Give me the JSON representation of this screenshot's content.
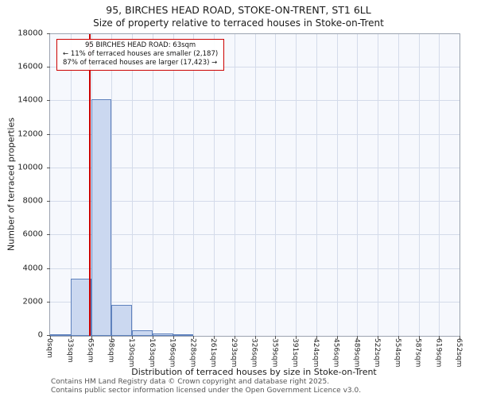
{
  "title": "95, BIRCHES HEAD ROAD, STOKE-ON-TRENT, ST1 6LL",
  "subtitle": "Size of property relative to terraced houses in Stoke-on-Trent",
  "chart_data": {
    "type": "bar",
    "title": "95, BIRCHES HEAD ROAD, STOKE-ON-TRENT, ST1 6LL",
    "subtitle": "Size of property relative to terraced houses in Stoke-on-Trent",
    "xlabel": "Distribution of terraced houses by size in Stoke-on-Trent",
    "ylabel": "Number of terraced properties",
    "ylim": [
      0,
      18000
    ],
    "ytick_step": 2000,
    "grid": true,
    "x_tick_labels": [
      "0sqm",
      "33sqm",
      "65sqm",
      "98sqm",
      "130sqm",
      "163sqm",
      "196sqm",
      "228sqm",
      "261sqm",
      "293sqm",
      "326sqm",
      "359sqm",
      "391sqm",
      "424sqm",
      "456sqm",
      "489sqm",
      "522sqm",
      "554sqm",
      "587sqm",
      "619sqm",
      "652sqm"
    ],
    "bin_edges_sqm": [
      0,
      33,
      65,
      98,
      130,
      163,
      196,
      228,
      261,
      293,
      326,
      359,
      391,
      424,
      456,
      489,
      522,
      554,
      587,
      619,
      652
    ],
    "values": [
      60,
      3400,
      14100,
      1850,
      350,
      120,
      50,
      0,
      0,
      0,
      0,
      0,
      0,
      0,
      0,
      0,
      0,
      0,
      0,
      0
    ],
    "marker": {
      "label": "95 BIRCHES HEAD ROAD",
      "value_sqm": 63,
      "axis_max_sqm": 652
    },
    "annotation": {
      "line1": "95 BIRCHES HEAD ROAD: 63sqm",
      "line2": "← 11% of terraced houses are smaller (2,187)",
      "line3": "87% of terraced houses are larger (17,423) →"
    },
    "colors": {
      "bar_fill": "#cbd8f0",
      "bar_stroke": "#5e81bd",
      "marker_line": "#cc0000",
      "annotation_border": "#cc0000",
      "grid": "#d4dbea",
      "plot_bg": "#f6f8fd"
    }
  },
  "footer": {
    "line1": "Contains HM Land Registry data © Crown copyright and database right 2025.",
    "line2": "Contains public sector information licensed under the Open Government Licence v3.0."
  }
}
